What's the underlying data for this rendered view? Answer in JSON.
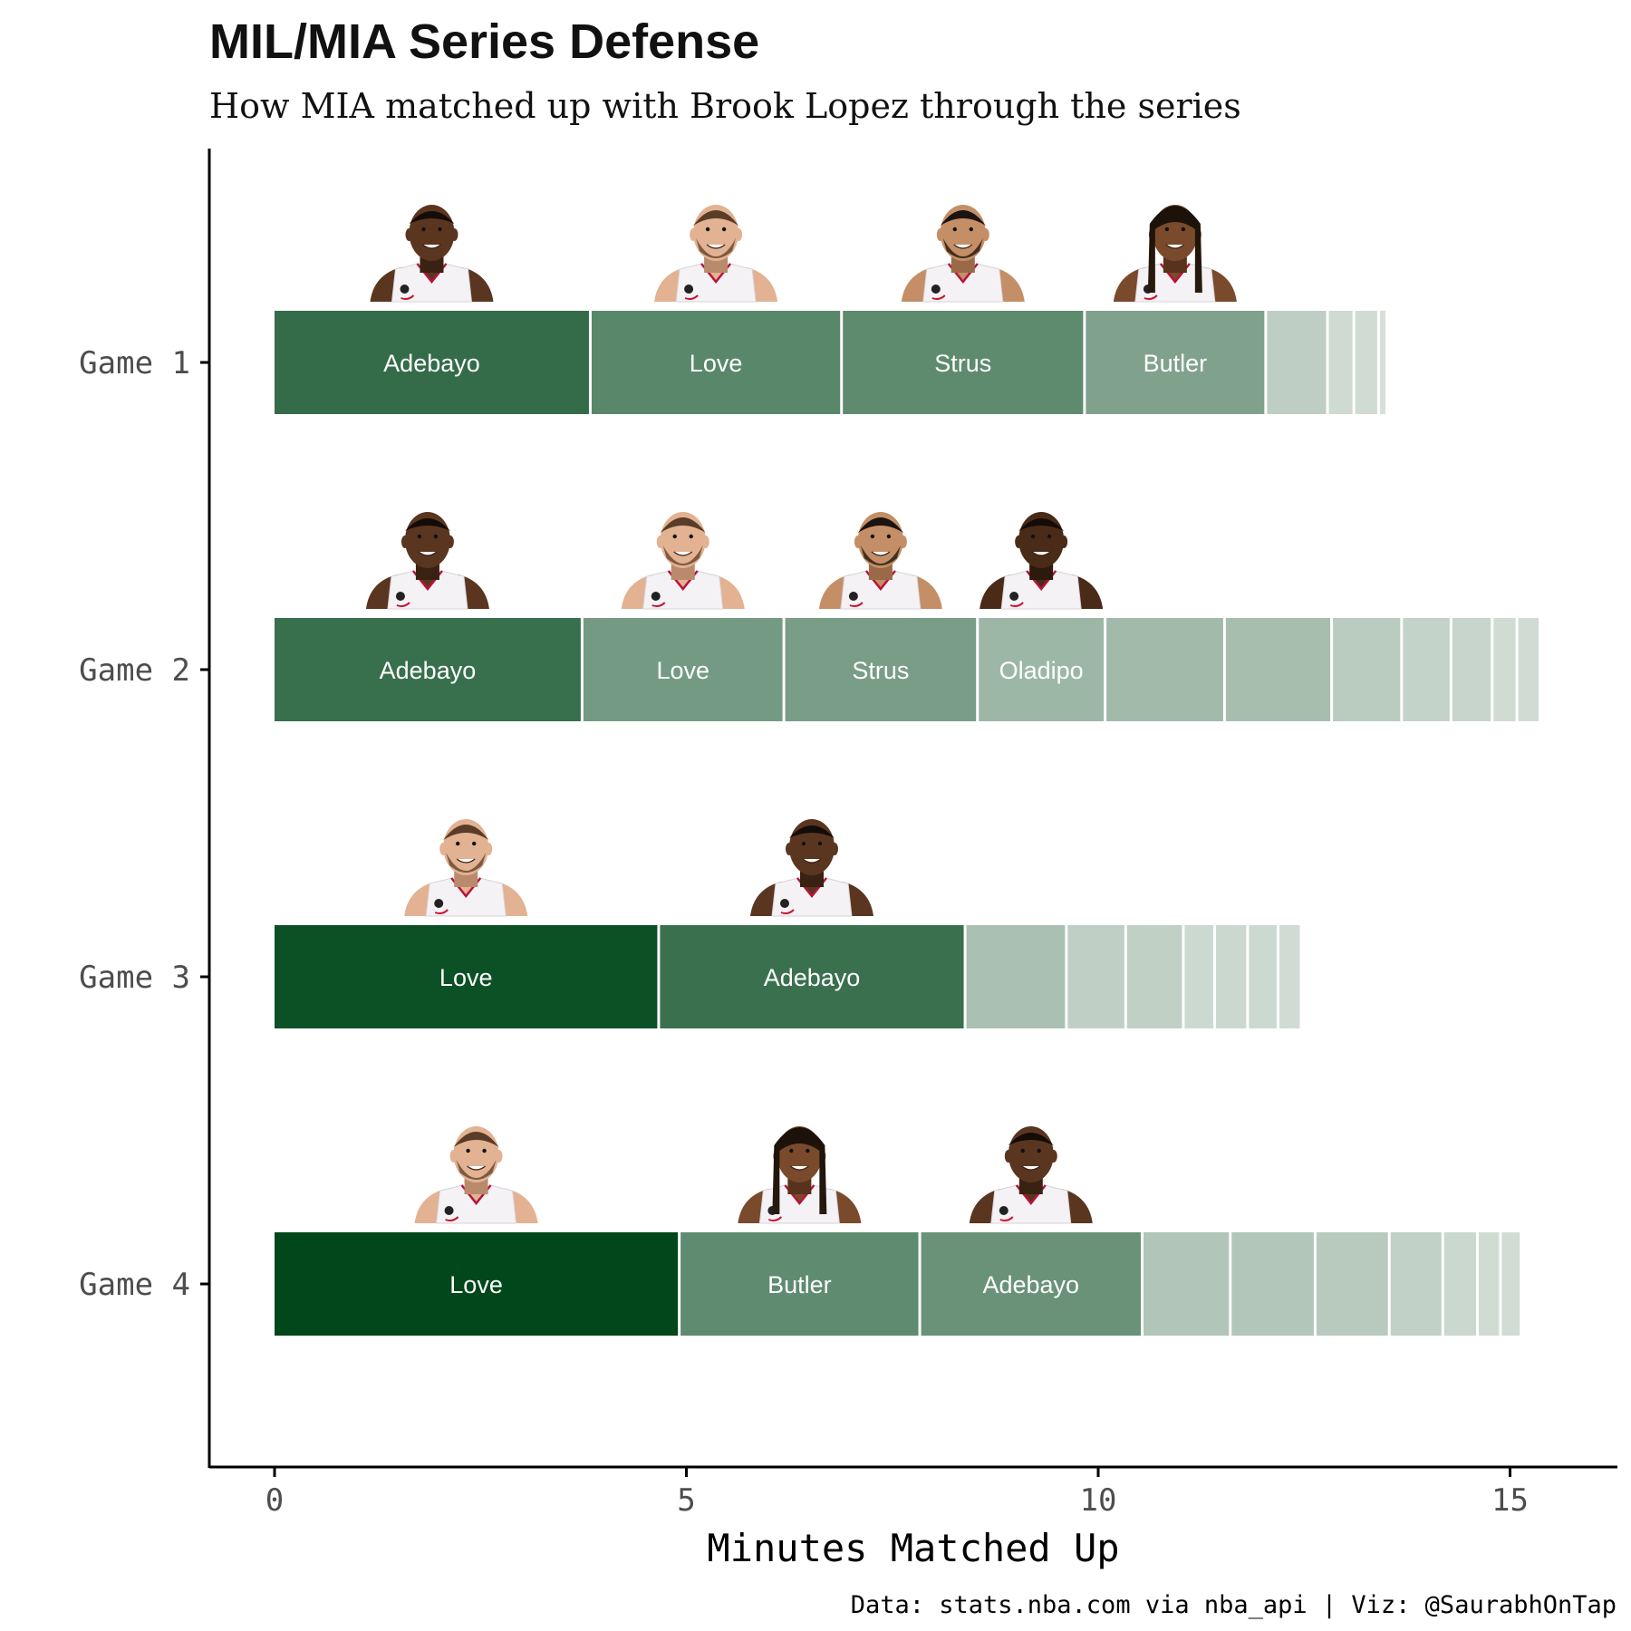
{
  "chart_data": {
    "type": "bar",
    "orientation": "horizontal",
    "stacked": true,
    "title": "MIL/MIA Series Defense",
    "subtitle": "How MIA matched up with Brook Lopez through the series",
    "xlabel": "Minutes Matched Up",
    "ylabel": "",
    "xlim": [
      -0.8,
      16.3
    ],
    "x_ticks": [
      0,
      5,
      10,
      15
    ],
    "caption": "Data: stats.nba.com via nba_api | Viz: @SaurabhOnTap",
    "grid": false,
    "legend": "none",
    "colors": {
      "low": "#d9e2dc",
      "high": "#00471b",
      "label": "#ffffff",
      "axis": "#000000",
      "tick_label": "#4d4d4d"
    },
    "categories": [
      "Game 1",
      "Game 2",
      "Game 3",
      "Game 4"
    ],
    "series": [
      {
        "category": "Game 1",
        "segments": [
          {
            "label": "Adebayo",
            "minutes": 3.85,
            "portrait": "Adebayo"
          },
          {
            "label": "Love",
            "minutes": 3.05,
            "portrait": "Love"
          },
          {
            "label": "Strus",
            "minutes": 2.95,
            "portrait": "Strus"
          },
          {
            "label": "Butler",
            "minutes": 2.2,
            "portrait": "Butler"
          },
          {
            "label": "",
            "minutes": 0.75
          },
          {
            "label": "",
            "minutes": 0.32
          },
          {
            "label": "",
            "minutes": 0.3
          },
          {
            "label": "",
            "minutes": 0.1
          }
        ]
      },
      {
        "category": "Game 2",
        "segments": [
          {
            "label": "Adebayo",
            "minutes": 3.75,
            "portrait": "Adebayo"
          },
          {
            "label": "Love",
            "minutes": 2.45,
            "portrait": "Love"
          },
          {
            "label": "Strus",
            "minutes": 2.35,
            "portrait": "Strus"
          },
          {
            "label": "Oladipo",
            "minutes": 1.55,
            "portrait": "Oladipo"
          },
          {
            "label": "",
            "minutes": 1.45
          },
          {
            "label": "",
            "minutes": 1.3
          },
          {
            "label": "",
            "minutes": 0.85
          },
          {
            "label": "",
            "minutes": 0.6
          },
          {
            "label": "",
            "minutes": 0.5
          },
          {
            "label": "",
            "minutes": 0.3
          },
          {
            "label": "",
            "minutes": 0.28
          }
        ]
      },
      {
        "category": "Game 3",
        "segments": [
          {
            "label": "Love",
            "minutes": 4.68,
            "portrait": "Love"
          },
          {
            "label": "Adebayo",
            "minutes": 3.72,
            "portrait": "Adebayo"
          },
          {
            "label": "",
            "minutes": 1.23
          },
          {
            "label": "",
            "minutes": 0.72
          },
          {
            "label": "",
            "minutes": 0.7
          },
          {
            "label": "",
            "minutes": 0.38
          },
          {
            "label": "",
            "minutes": 0.4
          },
          {
            "label": "",
            "minutes": 0.37
          },
          {
            "label": "",
            "minutes": 0.28
          }
        ]
      },
      {
        "category": "Game 4",
        "segments": [
          {
            "label": "Love",
            "minutes": 4.93,
            "portrait": "Love"
          },
          {
            "label": "Butler",
            "minutes": 2.92,
            "portrait": "Butler"
          },
          {
            "label": "Adebayo",
            "minutes": 2.7,
            "portrait": "Adebayo"
          },
          {
            "label": "",
            "minutes": 1.07
          },
          {
            "label": "",
            "minutes": 1.03
          },
          {
            "label": "",
            "minutes": 0.9
          },
          {
            "label": "",
            "minutes": 0.65
          },
          {
            "label": "",
            "minutes": 0.42
          },
          {
            "label": "",
            "minutes": 0.28
          },
          {
            "label": "",
            "minutes": 0.25
          }
        ]
      }
    ]
  }
}
